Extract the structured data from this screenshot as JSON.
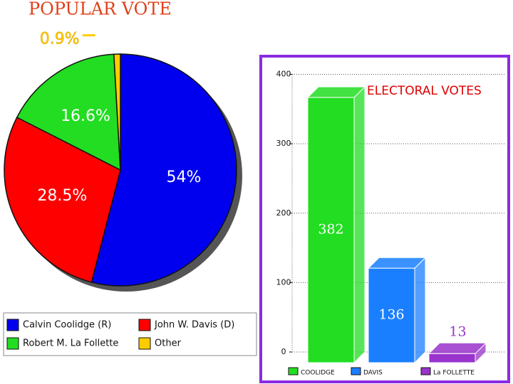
{
  "chart_data": [
    {
      "type": "pie",
      "title": "POPULAR VOTE",
      "categories": [
        "Calvin Coolidge (R)",
        "John W. Davis (D)",
        "Robert M. La Follette",
        "Other"
      ],
      "values": [
        54,
        28.5,
        16.6,
        0.9
      ],
      "value_labels": [
        "54%",
        "28.5%",
        "16.6%",
        "0.9%"
      ],
      "colors": [
        "#0000ee",
        "#ff0000",
        "#22dd22",
        "#ffcc00"
      ]
    },
    {
      "type": "bar3d",
      "title": "ELECTORAL VOTES",
      "categories": [
        "COOLIDGE",
        "DAVIS",
        "La FOLLETTE"
      ],
      "values": [
        382,
        136,
        13
      ],
      "colors": [
        "#22dd22",
        "#1a7fff",
        "#9933cc"
      ],
      "ylim": [
        0,
        400
      ],
      "yticks": [
        0,
        100,
        200,
        300,
        400
      ],
      "grid": true
    }
  ]
}
